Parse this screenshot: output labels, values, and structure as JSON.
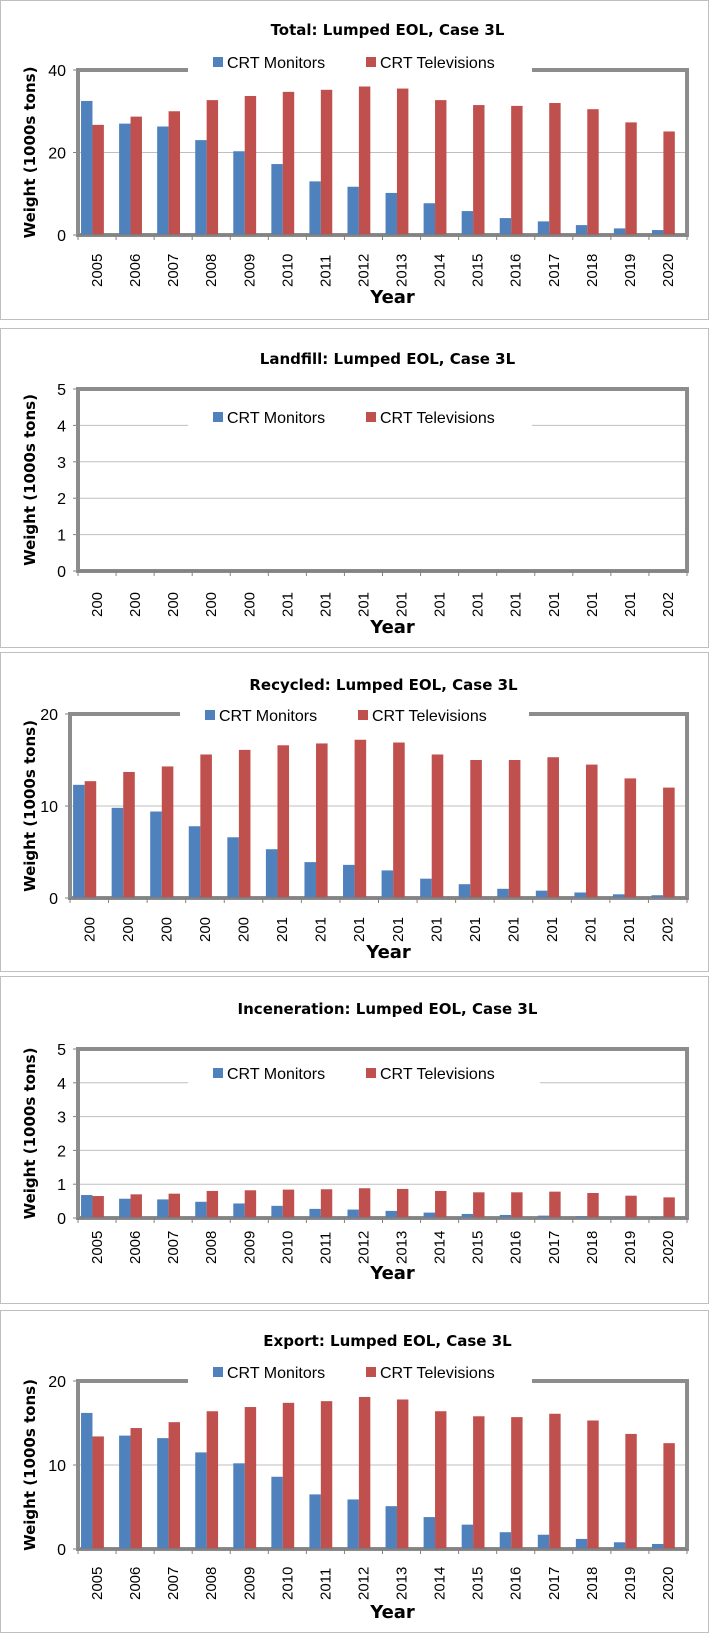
{
  "colors": {
    "monitors": "#4f81bd",
    "televisions": "#c0504d",
    "frame": "#8c8c8c",
    "grid": "#bfbfbf"
  },
  "chart_data": [
    {
      "type": "bar",
      "title": "Total:  Lumped EOL, Case 3L",
      "xlabel": "Year",
      "ylabel": "Weight (1000s tons)",
      "ylim": [
        0,
        40
      ],
      "yticks": [
        "0",
        "20",
        "40"
      ],
      "categories": [
        "2005",
        "2006",
        "2007",
        "2008",
        "2009",
        "2010",
        "2011",
        "2012",
        "2013",
        "2014",
        "2015",
        "2016",
        "2017",
        "2018",
        "2019",
        "2020"
      ],
      "grid": true,
      "legend": "top",
      "series": [
        {
          "name": "CRT Monitors",
          "values": [
            32.5,
            27,
            26.3,
            23,
            20.3,
            17.2,
            13,
            11.7,
            10.2,
            7.7,
            5.8,
            4.1,
            3.3,
            2.4,
            1.6,
            1.2
          ]
        },
        {
          "name": "CRT Televisions",
          "values": [
            26.7,
            28.7,
            30,
            32.7,
            33.7,
            34.7,
            35.2,
            36,
            35.5,
            32.7,
            31.5,
            31.3,
            32,
            30.5,
            27.3,
            25.1
          ]
        }
      ]
    },
    {
      "type": "bar",
      "title": "Landfill:  Lumped EOL, Case 3L",
      "xlabel": "Year",
      "ylabel": "Weight (1000s tons)",
      "ylim": [
        0,
        5
      ],
      "yticks": [
        "0",
        "1",
        "2",
        "3",
        "4",
        "5"
      ],
      "categories": [
        "200",
        "200",
        "200",
        "200",
        "200",
        "201",
        "201",
        "201",
        "201",
        "201",
        "201",
        "201",
        "201",
        "201",
        "201",
        "202"
      ],
      "grid": true,
      "legend": "top",
      "series": [
        {
          "name": "CRT Monitors",
          "values": [
            0,
            0,
            0,
            0,
            0,
            0,
            0,
            0,
            0,
            0,
            0,
            0,
            0,
            0,
            0,
            0
          ]
        },
        {
          "name": "CRT Televisions",
          "values": [
            0,
            0,
            0,
            0,
            0,
            0,
            0,
            0,
            0,
            0,
            0,
            0,
            0,
            0,
            0,
            0
          ]
        }
      ]
    },
    {
      "type": "bar",
      "title": "Recycled:  Lumped EOL, Case 3L",
      "xlabel": "Year",
      "ylabel": "Weight (1000s tons)",
      "ylim": [
        0,
        20
      ],
      "yticks": [
        "0",
        "10",
        "20"
      ],
      "categories": [
        "200",
        "200",
        "200",
        "200",
        "200",
        "201",
        "201",
        "201",
        "201",
        "201",
        "201",
        "201",
        "201",
        "201",
        "201",
        "202"
      ],
      "grid": true,
      "legend": "top",
      "series": [
        {
          "name": "CRT Monitors",
          "values": [
            12.3,
            9.8,
            9.4,
            7.8,
            6.6,
            5.3,
            3.9,
            3.6,
            3.0,
            2.1,
            1.5,
            1.0,
            0.8,
            0.6,
            0.4,
            0.3
          ]
        },
        {
          "name": "CRT Televisions",
          "values": [
            12.7,
            13.7,
            14.3,
            15.6,
            16.1,
            16.6,
            16.8,
            17.2,
            16.9,
            15.6,
            15,
            15,
            15.3,
            14.5,
            13,
            12
          ]
        }
      ]
    },
    {
      "type": "bar",
      "title": "Inceneration:  Lumped EOL, Case 3L",
      "xlabel": "Year",
      "ylabel": "Weight (1000s tons)",
      "ylim": [
        0,
        5
      ],
      "yticks": [
        "0",
        "1",
        "2",
        "3",
        "4",
        "5"
      ],
      "categories": [
        "2005",
        "2006",
        "2007",
        "2008",
        "2009",
        "2010",
        "2011",
        "2012",
        "2013",
        "2014",
        "2015",
        "2016",
        "2017",
        "2018",
        "2019",
        "2020"
      ],
      "grid": true,
      "legend": "top",
      "series": [
        {
          "name": "CRT Monitors",
          "values": [
            0.68,
            0.57,
            0.55,
            0.48,
            0.43,
            0.36,
            0.27,
            0.25,
            0.21,
            0.16,
            0.12,
            0.09,
            0.07,
            0.05,
            0.03,
            0.03
          ]
        },
        {
          "name": "CRT Televisions",
          "values": [
            0.65,
            0.7,
            0.72,
            0.8,
            0.82,
            0.84,
            0.85,
            0.88,
            0.86,
            0.8,
            0.76,
            0.76,
            0.78,
            0.74,
            0.66,
            0.61
          ]
        }
      ]
    },
    {
      "type": "bar",
      "title": "Export:  Lumped EOL, Case 3L",
      "xlabel": "Year",
      "ylabel": "Weight (1000s tons)",
      "ylim": [
        0,
        20
      ],
      "yticks": [
        "0",
        "10",
        "20"
      ],
      "categories": [
        "2005",
        "2006",
        "2007",
        "2008",
        "2009",
        "2010",
        "2011",
        "2012",
        "2013",
        "2014",
        "2015",
        "2016",
        "2017",
        "2018",
        "2019",
        "2020"
      ],
      "grid": true,
      "legend": "top",
      "series": [
        {
          "name": "CRT Monitors",
          "values": [
            16.2,
            13.5,
            13.2,
            11.5,
            10.2,
            8.6,
            6.5,
            5.9,
            5.1,
            3.8,
            2.9,
            2.0,
            1.7,
            1.2,
            0.8,
            0.6
          ]
        },
        {
          "name": "CRT Televisions",
          "values": [
            13.4,
            14.4,
            15.1,
            16.4,
            16.9,
            17.4,
            17.6,
            18.1,
            17.8,
            16.4,
            15.8,
            15.7,
            16.1,
            15.3,
            13.7,
            12.6
          ]
        }
      ]
    }
  ]
}
